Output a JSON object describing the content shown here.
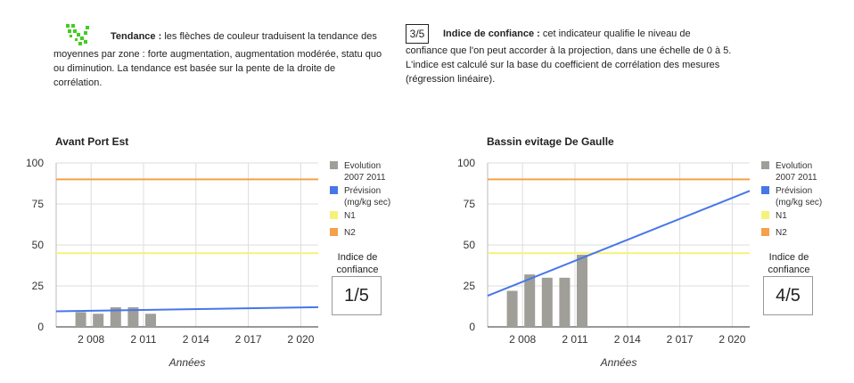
{
  "header": {
    "trend": {
      "label": "Tendance :",
      "text_first": "les flèches de couleur traduisent la tendance des",
      "text_rest": "moyennes par zone : forte augmentation, augmentation modérée, statu quo ou diminution. La tendance est basée sur la pente de la droite de corrélation.",
      "icon": "green-diagonal-arrow-icon",
      "icon_color": "#44cc22"
    },
    "confidence": {
      "sample": "3/5",
      "label": "Indice de confiance :",
      "text_first": "cet indicateur qualifie le niveau de",
      "text_rest": "confiance que l'on peut accorder à la projection, dans une échelle de 0 à 5. L'indice est calculé sur la base du coefficient de corrélation des mesures (régression linéaire)."
    }
  },
  "colors": {
    "bars": "#a09e98",
    "prevision": "#4677e8",
    "n1": "#f5f27a",
    "n2": "#f5a04a",
    "grid": "#dddddd"
  },
  "chart_data": [
    {
      "type": "bar",
      "title": "Avant Port Est",
      "xlabel": "Années",
      "ylabel": "",
      "ylim": [
        0,
        100
      ],
      "xlim": [
        2006,
        2021
      ],
      "yticks": [
        0,
        25,
        50,
        75,
        100
      ],
      "xticks": [
        2008,
        2011,
        2014,
        2017,
        2020
      ],
      "xtick_labels": [
        "2 008",
        "2 011",
        "2 014",
        "2 017",
        "2 020"
      ],
      "bars": {
        "name": "Evolution 2007 2011",
        "x": [
          2007,
          2008,
          2009,
          2010,
          2011
        ],
        "values": [
          9,
          8,
          12,
          12,
          8
        ]
      },
      "prevision": {
        "name": "Prévision (mg/kg sec)",
        "x": [
          2006,
          2021
        ],
        "y": [
          9.5,
          12
        ]
      },
      "n1": {
        "name": "N1",
        "value": 45
      },
      "n2": {
        "name": "N2",
        "value": 90
      },
      "legend": [
        "Evolution 2007 2011",
        "Prévision (mg/kg sec)",
        "N1",
        "N2"
      ],
      "legend_position": "right",
      "confidence_label": "Indice de confiance",
      "confidence_value": "1/5"
    },
    {
      "type": "bar",
      "title": "Bassin evitage De Gaulle",
      "xlabel": "Années",
      "ylabel": "",
      "ylim": [
        0,
        100
      ],
      "xlim": [
        2006,
        2021
      ],
      "yticks": [
        0,
        25,
        50,
        75,
        100
      ],
      "xticks": [
        2008,
        2011,
        2014,
        2017,
        2020
      ],
      "xtick_labels": [
        "2 008",
        "2 011",
        "2 014",
        "2 017",
        "2 020"
      ],
      "bars": {
        "name": "Evolution 2007 2011",
        "x": [
          2007,
          2008,
          2009,
          2010,
          2011
        ],
        "values": [
          22,
          32,
          30,
          30,
          44
        ]
      },
      "prevision": {
        "name": "Prévision (mg/kg sec)",
        "x": [
          2006,
          2021
        ],
        "y": [
          19,
          83
        ]
      },
      "n1": {
        "name": "N1",
        "value": 45
      },
      "n2": {
        "name": "N2",
        "value": 90
      },
      "legend": [
        "Evolution 2007 2011",
        "Prévision (mg/kg sec)",
        "N1",
        "N2"
      ],
      "legend_position": "right",
      "confidence_label": "Indice de confiance",
      "confidence_value": "4/5"
    }
  ]
}
